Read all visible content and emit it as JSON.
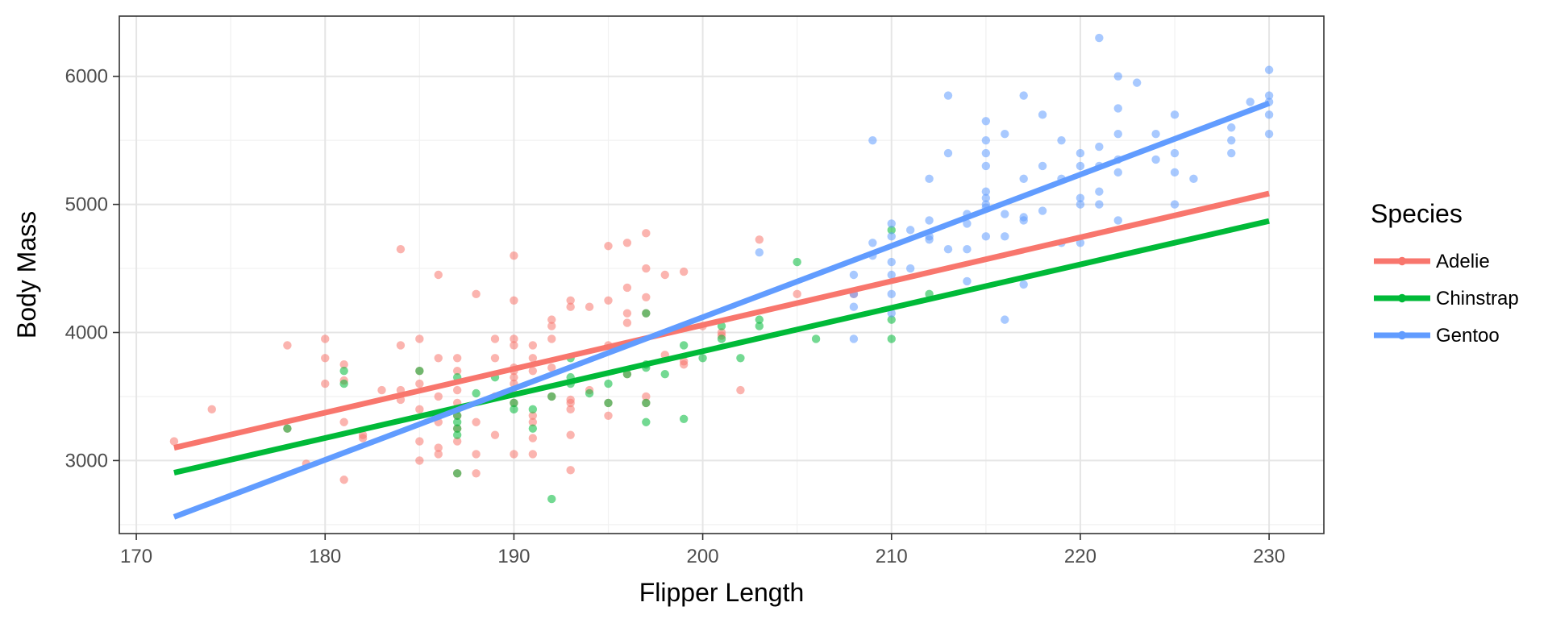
{
  "chart_data": {
    "type": "scatter",
    "title": "",
    "xlabel": "Flipper Length",
    "ylabel": "Body Mass",
    "xlim": [
      169.1,
      232.9
    ],
    "ylim": [
      2430,
      6470
    ],
    "xticks": [
      170,
      180,
      190,
      200,
      210,
      220,
      230
    ],
    "yticks": [
      3000,
      4000,
      5000,
      6000
    ],
    "grid": true,
    "legend": {
      "title": "Species",
      "position": "right"
    },
    "series": [
      {
        "name": "Adelie",
        "color": "#F8766D",
        "fit": {
          "x": [
            172,
            230
          ],
          "y": [
            3100,
            5085
          ]
        },
        "points": [
          [
            172,
            3150
          ],
          [
            174,
            3400
          ],
          [
            178,
            3900
          ],
          [
            178,
            3250
          ],
          [
            179,
            2975
          ],
          [
            180,
            3600
          ],
          [
            180,
            3800
          ],
          [
            180,
            3950
          ],
          [
            181,
            2850
          ],
          [
            181,
            3300
          ],
          [
            181,
            3625
          ],
          [
            181,
            3750
          ],
          [
            182,
            3175
          ],
          [
            182,
            3200
          ],
          [
            183,
            3550
          ],
          [
            184,
            3550
          ],
          [
            184,
            3475
          ],
          [
            184,
            3900
          ],
          [
            184,
            4650
          ],
          [
            185,
            3000
          ],
          [
            185,
            3150
          ],
          [
            185,
            3400
          ],
          [
            185,
            3600
          ],
          [
            185,
            3700
          ],
          [
            185,
            3950
          ],
          [
            186,
            3050
          ],
          [
            186,
            3100
          ],
          [
            186,
            3300
          ],
          [
            186,
            3500
          ],
          [
            186,
            3800
          ],
          [
            186,
            4450
          ],
          [
            187,
            2900
          ],
          [
            187,
            3150
          ],
          [
            187,
            3250
          ],
          [
            187,
            3350
          ],
          [
            187,
            3450
          ],
          [
            187,
            3550
          ],
          [
            187,
            3700
          ],
          [
            187,
            3800
          ],
          [
            188,
            2900
          ],
          [
            188,
            3050
          ],
          [
            188,
            3300
          ],
          [
            188,
            4300
          ],
          [
            189,
            3200
          ],
          [
            189,
            3500
          ],
          [
            189,
            3800
          ],
          [
            189,
            3950
          ],
          [
            190,
            3050
          ],
          [
            190,
            3450
          ],
          [
            190,
            3525
          ],
          [
            190,
            3600
          ],
          [
            190,
            3650
          ],
          [
            190,
            3700
          ],
          [
            190,
            3725
          ],
          [
            190,
            3900
          ],
          [
            190,
            3950
          ],
          [
            190,
            4250
          ],
          [
            190,
            4600
          ],
          [
            191,
            3050
          ],
          [
            191,
            3175
          ],
          [
            191,
            3300
          ],
          [
            191,
            3350
          ],
          [
            191,
            3700
          ],
          [
            191,
            3800
          ],
          [
            191,
            3900
          ],
          [
            192,
            3500
          ],
          [
            192,
            3725
          ],
          [
            192,
            3950
          ],
          [
            192,
            4050
          ],
          [
            192,
            4100
          ],
          [
            193,
            2925
          ],
          [
            193,
            3200
          ],
          [
            193,
            3400
          ],
          [
            193,
            3450
          ],
          [
            193,
            3475
          ],
          [
            193,
            4200
          ],
          [
            193,
            4250
          ],
          [
            194,
            3550
          ],
          [
            194,
            4200
          ],
          [
            195,
            3350
          ],
          [
            195,
            3450
          ],
          [
            195,
            3900
          ],
          [
            195,
            4250
          ],
          [
            195,
            4675
          ],
          [
            196,
            3675
          ],
          [
            196,
            4075
          ],
          [
            196,
            4150
          ],
          [
            196,
            4350
          ],
          [
            196,
            4700
          ],
          [
            197,
            3450
          ],
          [
            197,
            3500
          ],
          [
            197,
            4150
          ],
          [
            197,
            4275
          ],
          [
            197,
            4500
          ],
          [
            197,
            4775
          ],
          [
            198,
            3825
          ],
          [
            198,
            4450
          ],
          [
            199,
            3750
          ],
          [
            199,
            3775
          ],
          [
            199,
            4475
          ],
          [
            200,
            4050
          ],
          [
            201,
            3975
          ],
          [
            201,
            4000
          ],
          [
            202,
            3550
          ],
          [
            203,
            4725
          ],
          [
            205,
            4300
          ],
          [
            208,
            4300
          ]
        ]
      },
      {
        "name": "Chinstrap",
        "color": "#00BA38",
        "fit": {
          "x": [
            172,
            230
          ],
          "y": [
            2905,
            4870
          ]
        },
        "points": [
          [
            178,
            3250
          ],
          [
            181,
            3600
          ],
          [
            181,
            3700
          ],
          [
            185,
            3700
          ],
          [
            187,
            2900
          ],
          [
            187,
            3200
          ],
          [
            187,
            3250
          ],
          [
            187,
            3300
          ],
          [
            187,
            3350
          ],
          [
            187,
            3400
          ],
          [
            187,
            3650
          ],
          [
            188,
            3525
          ],
          [
            189,
            3650
          ],
          [
            190,
            3400
          ],
          [
            190,
            3450
          ],
          [
            191,
            3250
          ],
          [
            191,
            3400
          ],
          [
            192,
            2700
          ],
          [
            192,
            3500
          ],
          [
            193,
            3600
          ],
          [
            193,
            3650
          ],
          [
            193,
            3800
          ],
          [
            194,
            3525
          ],
          [
            195,
            3600
          ],
          [
            195,
            3450
          ],
          [
            196,
            3675
          ],
          [
            197,
            3300
          ],
          [
            197,
            3450
          ],
          [
            197,
            3725
          ],
          [
            197,
            3750
          ],
          [
            197,
            4150
          ],
          [
            198,
            3675
          ],
          [
            199,
            3325
          ],
          [
            199,
            3900
          ],
          [
            200,
            3800
          ],
          [
            201,
            3950
          ],
          [
            201,
            4050
          ],
          [
            202,
            3800
          ],
          [
            203,
            4050
          ],
          [
            203,
            4100
          ],
          [
            205,
            4550
          ],
          [
            206,
            3950
          ],
          [
            210,
            3950
          ],
          [
            210,
            4100
          ],
          [
            210,
            4800
          ],
          [
            212,
            4300
          ]
        ]
      },
      {
        "name": "Gentoo",
        "color": "#619CFF",
        "fit": {
          "x": [
            172,
            230
          ],
          "y": [
            2560,
            5790
          ]
        },
        "points": [
          [
            203,
            4625
          ],
          [
            208,
            3950
          ],
          [
            208,
            4200
          ],
          [
            208,
            4300
          ],
          [
            208,
            4450
          ],
          [
            209,
            4600
          ],
          [
            209,
            4700
          ],
          [
            209,
            5500
          ],
          [
            210,
            4150
          ],
          [
            210,
            4300
          ],
          [
            210,
            4450
          ],
          [
            210,
            4550
          ],
          [
            210,
            4750
          ],
          [
            210,
            4850
          ],
          [
            211,
            4500
          ],
          [
            211,
            4800
          ],
          [
            212,
            4725
          ],
          [
            212,
            4750
          ],
          [
            212,
            4875
          ],
          [
            212,
            5200
          ],
          [
            213,
            4650
          ],
          [
            213,
            5400
          ],
          [
            213,
            5850
          ],
          [
            214,
            4400
          ],
          [
            214,
            4650
          ],
          [
            214,
            4850
          ],
          [
            214,
            4925
          ],
          [
            215,
            4750
          ],
          [
            215,
            4975
          ],
          [
            215,
            5000
          ],
          [
            215,
            5050
          ],
          [
            215,
            5100
          ],
          [
            215,
            5300
          ],
          [
            215,
            5400
          ],
          [
            215,
            5500
          ],
          [
            215,
            5650
          ],
          [
            216,
            4100
          ],
          [
            216,
            4750
          ],
          [
            216,
            4925
          ],
          [
            216,
            5550
          ],
          [
            217,
            4375
          ],
          [
            217,
            4875
          ],
          [
            217,
            4900
          ],
          [
            217,
            5200
          ],
          [
            217,
            5850
          ],
          [
            218,
            4950
          ],
          [
            218,
            5300
          ],
          [
            218,
            5700
          ],
          [
            219,
            4700
          ],
          [
            219,
            5200
          ],
          [
            219,
            5500
          ],
          [
            220,
            4700
          ],
          [
            220,
            5000
          ],
          [
            220,
            5050
          ],
          [
            220,
            5300
          ],
          [
            220,
            5400
          ],
          [
            221,
            5000
          ],
          [
            221,
            5100
          ],
          [
            221,
            5300
          ],
          [
            221,
            5450
          ],
          [
            221,
            6300
          ],
          [
            222,
            4875
          ],
          [
            222,
            5250
          ],
          [
            222,
            5350
          ],
          [
            222,
            5550
          ],
          [
            222,
            5750
          ],
          [
            222,
            6000
          ],
          [
            223,
            5950
          ],
          [
            224,
            5350
          ],
          [
            224,
            5550
          ],
          [
            225,
            5000
          ],
          [
            225,
            5250
          ],
          [
            225,
            5400
          ],
          [
            225,
            5700
          ],
          [
            226,
            5200
          ],
          [
            228,
            5400
          ],
          [
            228,
            5500
          ],
          [
            228,
            5600
          ],
          [
            229,
            5800
          ],
          [
            230,
            5550
          ],
          [
            230,
            5700
          ],
          [
            230,
            5800
          ],
          [
            230,
            5850
          ],
          [
            230,
            6050
          ]
        ]
      }
    ]
  }
}
